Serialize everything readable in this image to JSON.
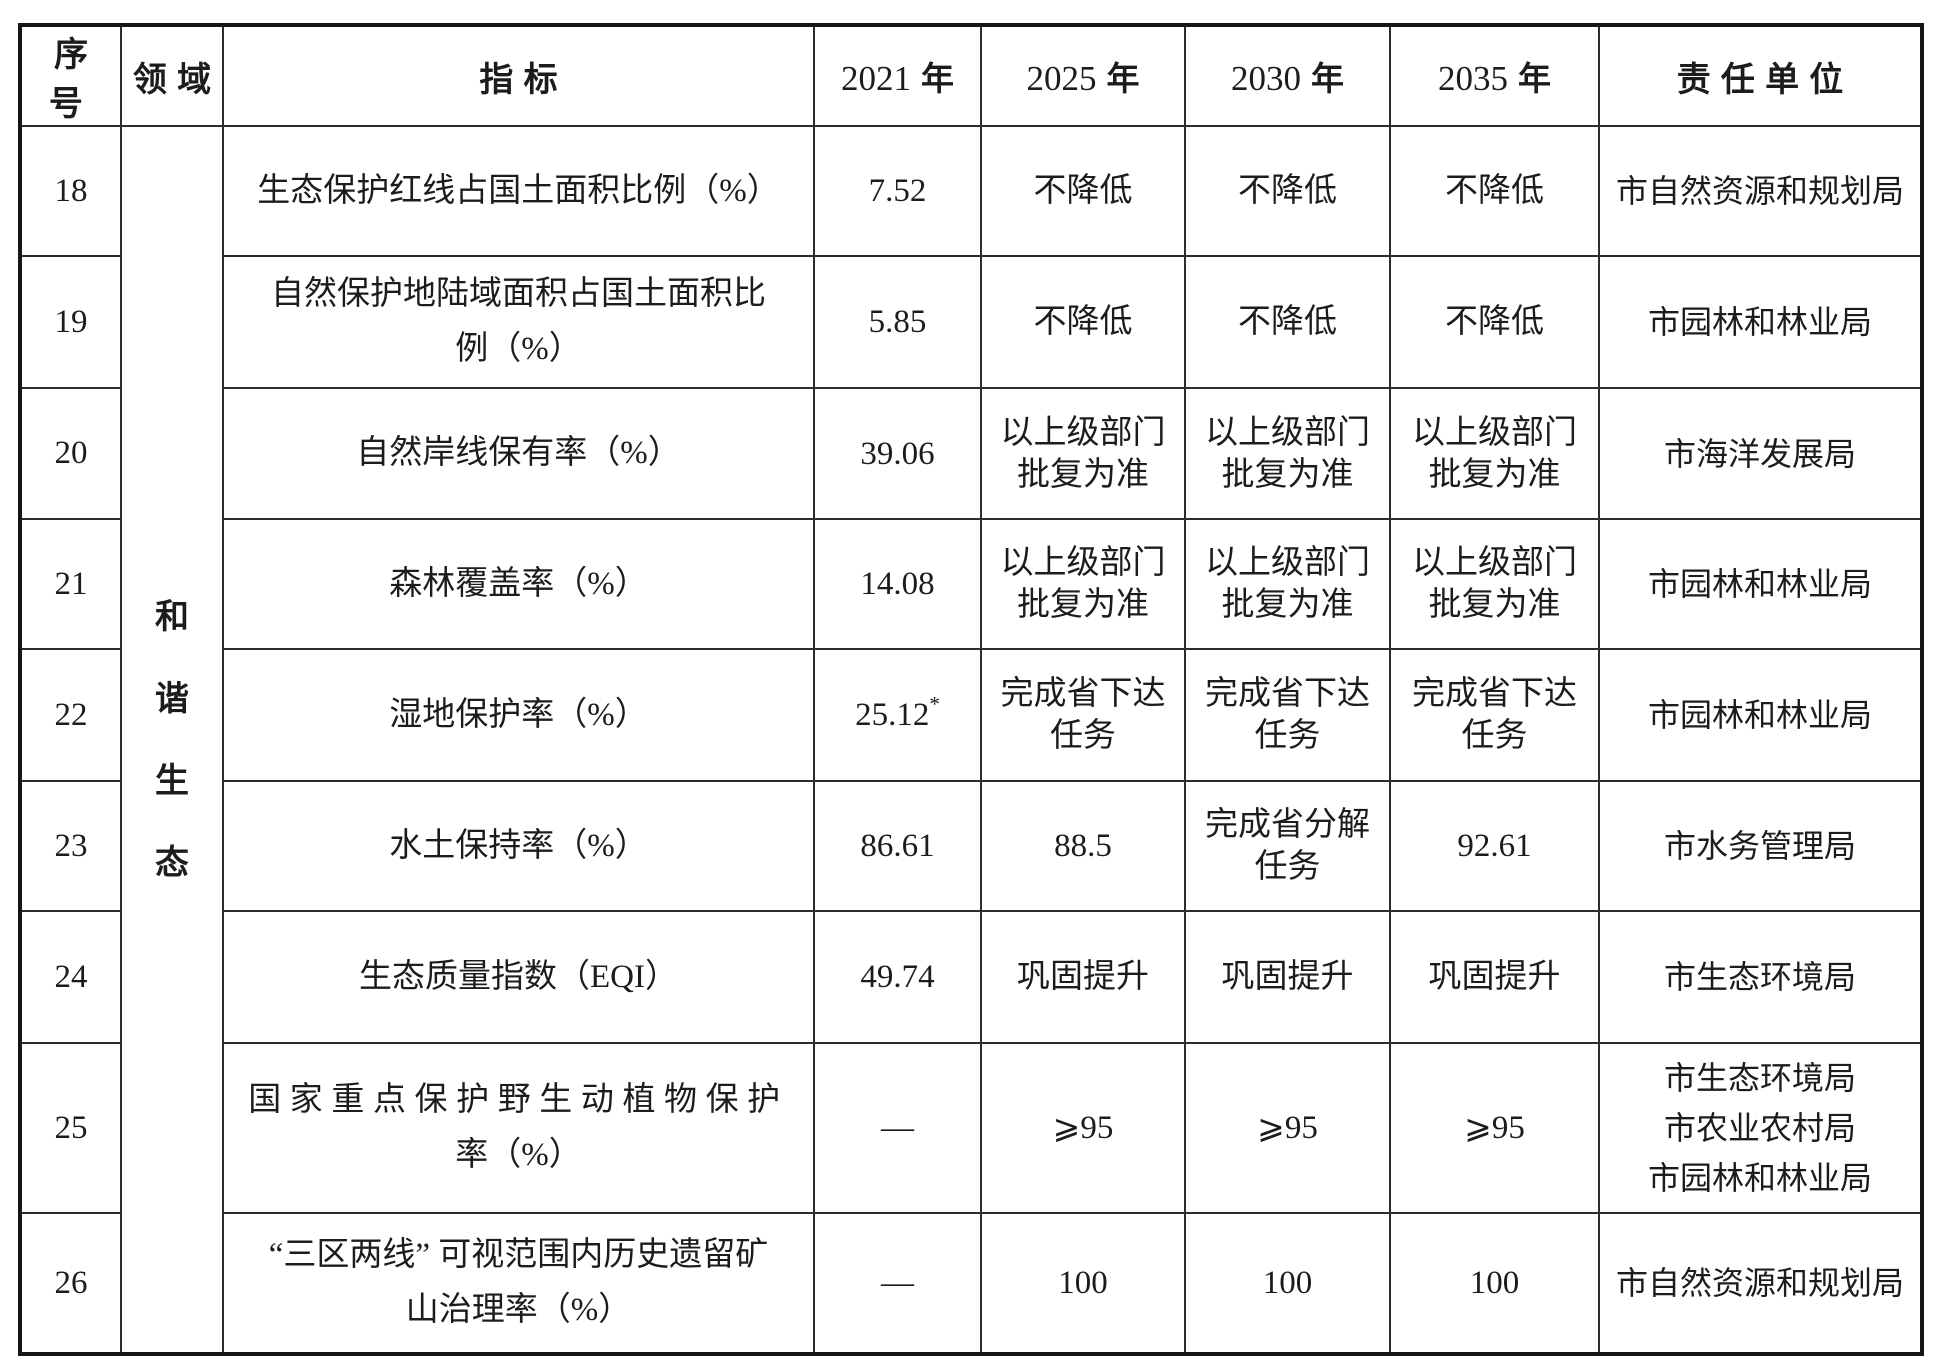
{
  "page": {
    "background_color": "#ffffff",
    "text_color": "#1c1c1c",
    "border_color": "#2c2c2c"
  },
  "table": {
    "header": {
      "seq": "序号",
      "domain": "领域",
      "indicator": "指标",
      "years": [
        {
          "num": "2021",
          "suffix": "年"
        },
        {
          "num": "2025",
          "suffix": "年"
        },
        {
          "num": "2030",
          "suffix": "年"
        },
        {
          "num": "2035",
          "suffix": "年"
        }
      ],
      "responsible": "责任单位"
    },
    "domain_chars": [
      "和",
      "谐",
      "生",
      "态"
    ],
    "rows": [
      {
        "no": "18",
        "indicator": [
          "生态保护红线占国土面积比例（%）"
        ],
        "y2021": "7.52",
        "y2025": [
          "不降低"
        ],
        "y2030": [
          "不降低"
        ],
        "y2035": [
          "不降低"
        ],
        "unit": [
          "市自然资源和规划局"
        ]
      },
      {
        "no": "19",
        "indicator": [
          "自然保护地陆域面积占国土面积比",
          "例（%）"
        ],
        "y2021": "5.85",
        "y2025": [
          "不降低"
        ],
        "y2030": [
          "不降低"
        ],
        "y2035": [
          "不降低"
        ],
        "unit": [
          "市园林和林业局"
        ]
      },
      {
        "no": "20",
        "indicator": [
          "自然岸线保有率（%）"
        ],
        "y2021": "39.06",
        "y2025": [
          "以上级部门",
          "批复为准"
        ],
        "y2030": [
          "以上级部门",
          "批复为准"
        ],
        "y2035": [
          "以上级部门",
          "批复为准"
        ],
        "unit": [
          "市海洋发展局"
        ]
      },
      {
        "no": "21",
        "indicator": [
          "森林覆盖率（%）"
        ],
        "y2021": "14.08",
        "y2025": [
          "以上级部门",
          "批复为准"
        ],
        "y2030": [
          "以上级部门",
          "批复为准"
        ],
        "y2035": [
          "以上级部门",
          "批复为准"
        ],
        "unit": [
          "市园林和林业局"
        ]
      },
      {
        "no": "22",
        "indicator": [
          "湿地保护率（%）"
        ],
        "y2021": "25.12",
        "y2021_sup": "*",
        "y2025": [
          "完成省下达",
          "任务"
        ],
        "y2030": [
          "完成省下达",
          "任务"
        ],
        "y2035": [
          "完成省下达",
          "任务"
        ],
        "unit": [
          "市园林和林业局"
        ]
      },
      {
        "no": "23",
        "indicator": [
          "水土保持率（%）"
        ],
        "y2021": "86.61",
        "y2025": [
          "88.5"
        ],
        "y2030": [
          "完成省分解",
          "任务"
        ],
        "y2035": [
          "92.61"
        ],
        "unit": [
          "市水务管理局"
        ]
      },
      {
        "no": "24",
        "indicator": [
          "生态质量指数（EQI）"
        ],
        "y2021": "49.74",
        "y2025": [
          "巩固提升"
        ],
        "y2030": [
          "巩固提升"
        ],
        "y2035": [
          "巩固提升"
        ],
        "unit": [
          "市生态环境局"
        ]
      },
      {
        "no": "25",
        "indicator": [
          "国家重点保护野生动植物保护",
          "率（%）"
        ],
        "y2021": "—",
        "y2025": [
          "⩾95"
        ],
        "y2030": [
          "⩾95"
        ],
        "y2035": [
          "⩾95"
        ],
        "unit": [
          "市生态环境局",
          "市农业农村局",
          "市园林和林业局"
        ]
      },
      {
        "no": "26",
        "indicator": [
          "“三区两线” 可视范围内历史遗留矿",
          "山治理率（%）"
        ],
        "y2021": "—",
        "y2025": [
          "100"
        ],
        "y2030": [
          "100"
        ],
        "y2035": [
          "100"
        ],
        "unit": [
          "市自然资源和规划局"
        ]
      }
    ]
  }
}
